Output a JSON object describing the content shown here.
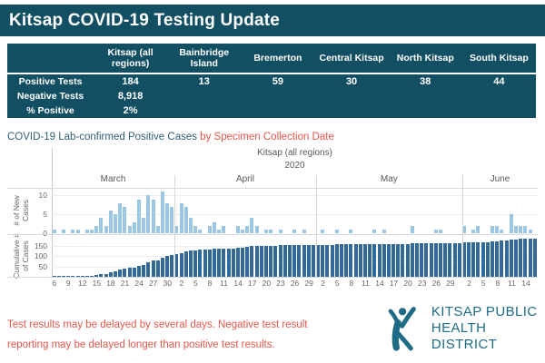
{
  "header": {
    "title": "Kitsap COVID-19 Testing Update"
  },
  "table": {
    "columns": [
      "Kitsap (all regions)",
      "Bainbridge Island",
      "Bremerton",
      "Central Kitsap",
      "North Kitsap",
      "South Kitsap"
    ],
    "rows": [
      {
        "label": "Positive Tests",
        "values": [
          "184",
          "13",
          "59",
          "30",
          "38",
          "44"
        ]
      },
      {
        "label": "Negative Tests",
        "values": [
          "8,918",
          "",
          "",
          "",
          "",
          ""
        ]
      },
      {
        "label": "% Positive",
        "values": [
          "2%",
          "",
          "",
          "",
          "",
          ""
        ]
      }
    ]
  },
  "chart_title": {
    "main": "COVID-19 Lab-confirmed Positive Cases",
    "accent": " by Specimen Collection Date"
  },
  "chart_data": {
    "type": "bar",
    "title": "COVID-19 Lab-confirmed Positive Cases by Specimen Collection Date",
    "facet_label": "Kitsap (all regions)",
    "year_label": "2020",
    "total_positive_cases": 184,
    "months": [
      {
        "name": "March",
        "first_day": 6,
        "new_cases": [
          1,
          0,
          1,
          0,
          1,
          1,
          0,
          1,
          1,
          2,
          4,
          2,
          6,
          5,
          8,
          7,
          2,
          3,
          9,
          4,
          10,
          9,
          2,
          11,
          8,
          7
        ],
        "tick_days": [
          6,
          9,
          12,
          15,
          18,
          21,
          24,
          27,
          30
        ]
      },
      {
        "name": "April",
        "first_day": 1,
        "new_cases": [
          2,
          8,
          7,
          4,
          2,
          1,
          0,
          2,
          3,
          1,
          2,
          0,
          0,
          2,
          1,
          2,
          4,
          2,
          0,
          1,
          1,
          0,
          1,
          0,
          0,
          1,
          0,
          1,
          0,
          0
        ],
        "tick_days": [
          2,
          5,
          8,
          11,
          14,
          17,
          20,
          23,
          26,
          29
        ]
      },
      {
        "name": "May",
        "first_day": 1,
        "new_cases": [
          0,
          1,
          0,
          0,
          1,
          0,
          0,
          1,
          0,
          0,
          0,
          0,
          1,
          0,
          1,
          0,
          0,
          0,
          0,
          0,
          2,
          0,
          0,
          0,
          0,
          1,
          1,
          0,
          0,
          0,
          0
        ],
        "tick_days": [
          2,
          5,
          8,
          11,
          14,
          17,
          20,
          23,
          26,
          29
        ]
      },
      {
        "name": "June",
        "first_day": 1,
        "new_cases": [
          2,
          0,
          1,
          2,
          0,
          0,
          2,
          2,
          1,
          0,
          5,
          2,
          2,
          2,
          1,
          0
        ],
        "tick_days": [
          2,
          5,
          8,
          11,
          14
        ]
      }
    ],
    "panels": [
      {
        "name": "# of New Cases",
        "mode": "daily",
        "ymax": 12,
        "yticks": [
          10,
          5,
          0
        ],
        "bar_color": "#9CC7E4"
      },
      {
        "name": "Cumulative # of Cases",
        "mode": "cumulative",
        "ymax": 200,
        "yticks": [
          150,
          100,
          50
        ],
        "bar_color": "#336996"
      }
    ],
    "legend": "off",
    "grid": "on"
  },
  "footer": {
    "disclaimer_line1": "Test results may be delayed by several days. Negative test result",
    "disclaimer_line2": "reporting may be delayed longer than positive test results.",
    "logo_line1": "KITSAP PUBLIC",
    "logo_line2": "HEALTH DISTRICT"
  },
  "colors": {
    "teal_banner": "#134F63",
    "title_text": "#2F5D75",
    "accent_red": "#E4564A",
    "new_cases_bar": "#9CC7E4",
    "cumulative_bar": "#336996",
    "logo_teal": "#1D6B85"
  }
}
